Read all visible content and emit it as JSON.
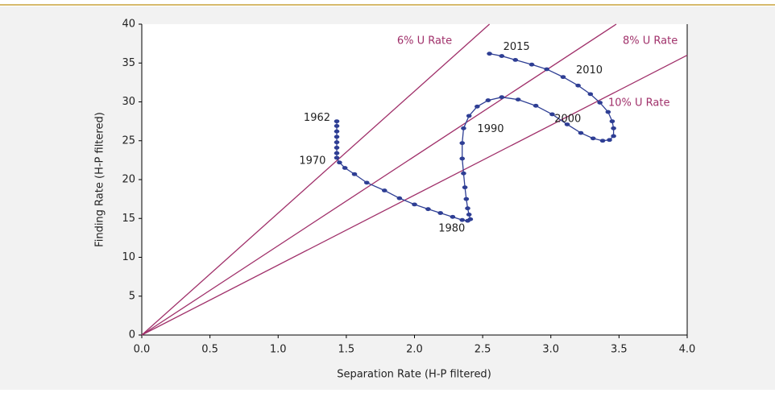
{
  "chart_data": {
    "type": "scatter-line",
    "x_label": "Separation Rate (H-P filtered)",
    "y_label": "Finding Rate (H-P filtered)",
    "xlim": [
      0,
      4
    ],
    "ylim": [
      0,
      40
    ],
    "xticks": [
      {
        "value": 0,
        "label": "0.0"
      },
      0.5,
      {
        "value": 1,
        "label": "1.0"
      },
      1.5,
      {
        "value": 2,
        "label": "2.0"
      },
      2.5,
      {
        "value": 3,
        "label": "3.0"
      },
      3.5,
      {
        "value": 4,
        "label": "4.0"
      }
    ],
    "yticks": [
      0,
      5,
      10,
      15,
      20,
      25,
      30,
      35,
      40
    ],
    "grid": false,
    "reference_lines": [
      {
        "name": "6% U Rate",
        "color": "#a0306a",
        "x": [
          0,
          2.55
        ],
        "values": [
          0,
          40
        ]
      },
      {
        "name": "8% U Rate",
        "color": "#a0306a",
        "x": [
          0,
          3.48
        ],
        "values": [
          0,
          40
        ]
      },
      {
        "name": "10% U Rate",
        "color": "#a0306a",
        "x": [
          0,
          4
        ],
        "values": [
          0,
          36
        ]
      }
    ],
    "series": [
      {
        "color": "#2e3e94",
        "x": [
          1.43,
          1.43,
          1.43,
          1.43,
          1.43,
          1.43,
          1.43,
          1.43,
          1.45,
          1.49,
          1.56,
          1.65,
          1.78,
          1.89,
          2.0,
          2.1,
          2.19,
          2.28,
          2.35,
          2.39,
          2.41,
          2.4,
          2.39,
          2.38,
          2.37,
          2.36,
          2.35,
          2.35,
          2.36,
          2.4,
          2.46,
          2.54,
          2.64,
          2.76,
          2.89,
          3.01,
          3.12,
          3.22,
          3.31,
          3.38,
          3.43,
          3.46,
          3.46,
          3.45,
          3.42,
          3.36,
          3.29,
          3.2,
          3.09,
          2.97,
          2.86,
          2.74,
          2.64,
          2.55
        ],
        "values": [
          27.5,
          26.9,
          26.2,
          25.5,
          24.8,
          24.1,
          23.4,
          22.8,
          22.2,
          21.5,
          20.7,
          19.6,
          18.6,
          17.6,
          16.8,
          16.2,
          15.7,
          15.2,
          14.8,
          14.7,
          14.9,
          15.5,
          16.3,
          17.5,
          19.0,
          20.8,
          22.7,
          24.7,
          26.6,
          28.2,
          29.4,
          30.2,
          30.6,
          30.3,
          29.5,
          28.4,
          27.1,
          26.0,
          25.3,
          25.0,
          25.1,
          25.6,
          26.6,
          27.5,
          28.7,
          29.9,
          31.0,
          32.1,
          33.2,
          34.2,
          34.8,
          35.4,
          35.9,
          36.2
        ],
        "labels": [
          "1962",
          null,
          null,
          null,
          null,
          null,
          null,
          null,
          "1970",
          null,
          null,
          null,
          null,
          null,
          null,
          null,
          null,
          null,
          "1980",
          null,
          null,
          null,
          null,
          null,
          null,
          null,
          null,
          null,
          "1990",
          null,
          null,
          null,
          null,
          null,
          null,
          null,
          null,
          null,
          "2000",
          null,
          null,
          null,
          null,
          null,
          null,
          null,
          null,
          null,
          "2010",
          null,
          null,
          null,
          null,
          "2015"
        ]
      }
    ]
  }
}
